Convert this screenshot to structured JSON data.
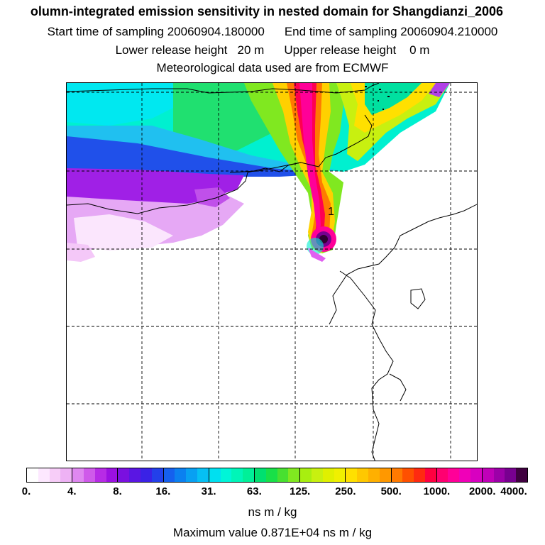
{
  "header": {
    "title": "olumn-integrated emission sensitivity in nested domain for Shangdianzi_2006",
    "start_time": "Start time of sampling 20060904.180000",
    "end_time": "End time of sampling 20060904.210000",
    "lower_height": "Lower release height   20 m",
    "upper_height": "Upper release height    0 m",
    "met_data": "Meteorological data used are from ECMWF"
  },
  "map": {
    "release_marker": "1"
  },
  "colorbar": {
    "tick_labels": [
      "0.",
      "4.",
      "8.",
      "16.",
      "31.",
      "63.",
      "125.",
      "250.",
      "500.",
      "1000.",
      "2000.",
      "4000."
    ],
    "colors": [
      "#ffffff",
      "#fde8ff",
      "#f7cdf8",
      "#eeb2f5",
      "#df88f0",
      "#cf5aea",
      "#b72be6",
      "#9b10e2",
      "#7a10e0",
      "#5a16e3",
      "#3a22e6",
      "#2340ea",
      "#1560ee",
      "#0b80f0",
      "#08a0f2",
      "#06c0f4",
      "#00e0f0",
      "#00f5d8",
      "#00f5b8",
      "#00f098",
      "#00e070",
      "#18e048",
      "#48e030",
      "#80e820",
      "#a8ee10",
      "#c8f010",
      "#e0f000",
      "#f0f000",
      "#ffe000",
      "#ffc800",
      "#ffb000",
      "#ff9800",
      "#ff7a00",
      "#ff5000",
      "#ff2a10",
      "#ff0040",
      "#ff0070",
      "#ff0098",
      "#f000b8",
      "#d800c0",
      "#c000b8",
      "#9c00a8",
      "#780090",
      "#400040"
    ],
    "units": "ns m / kg",
    "max_value": "Maximum value  0.871E+04 ns m / kg"
  }
}
